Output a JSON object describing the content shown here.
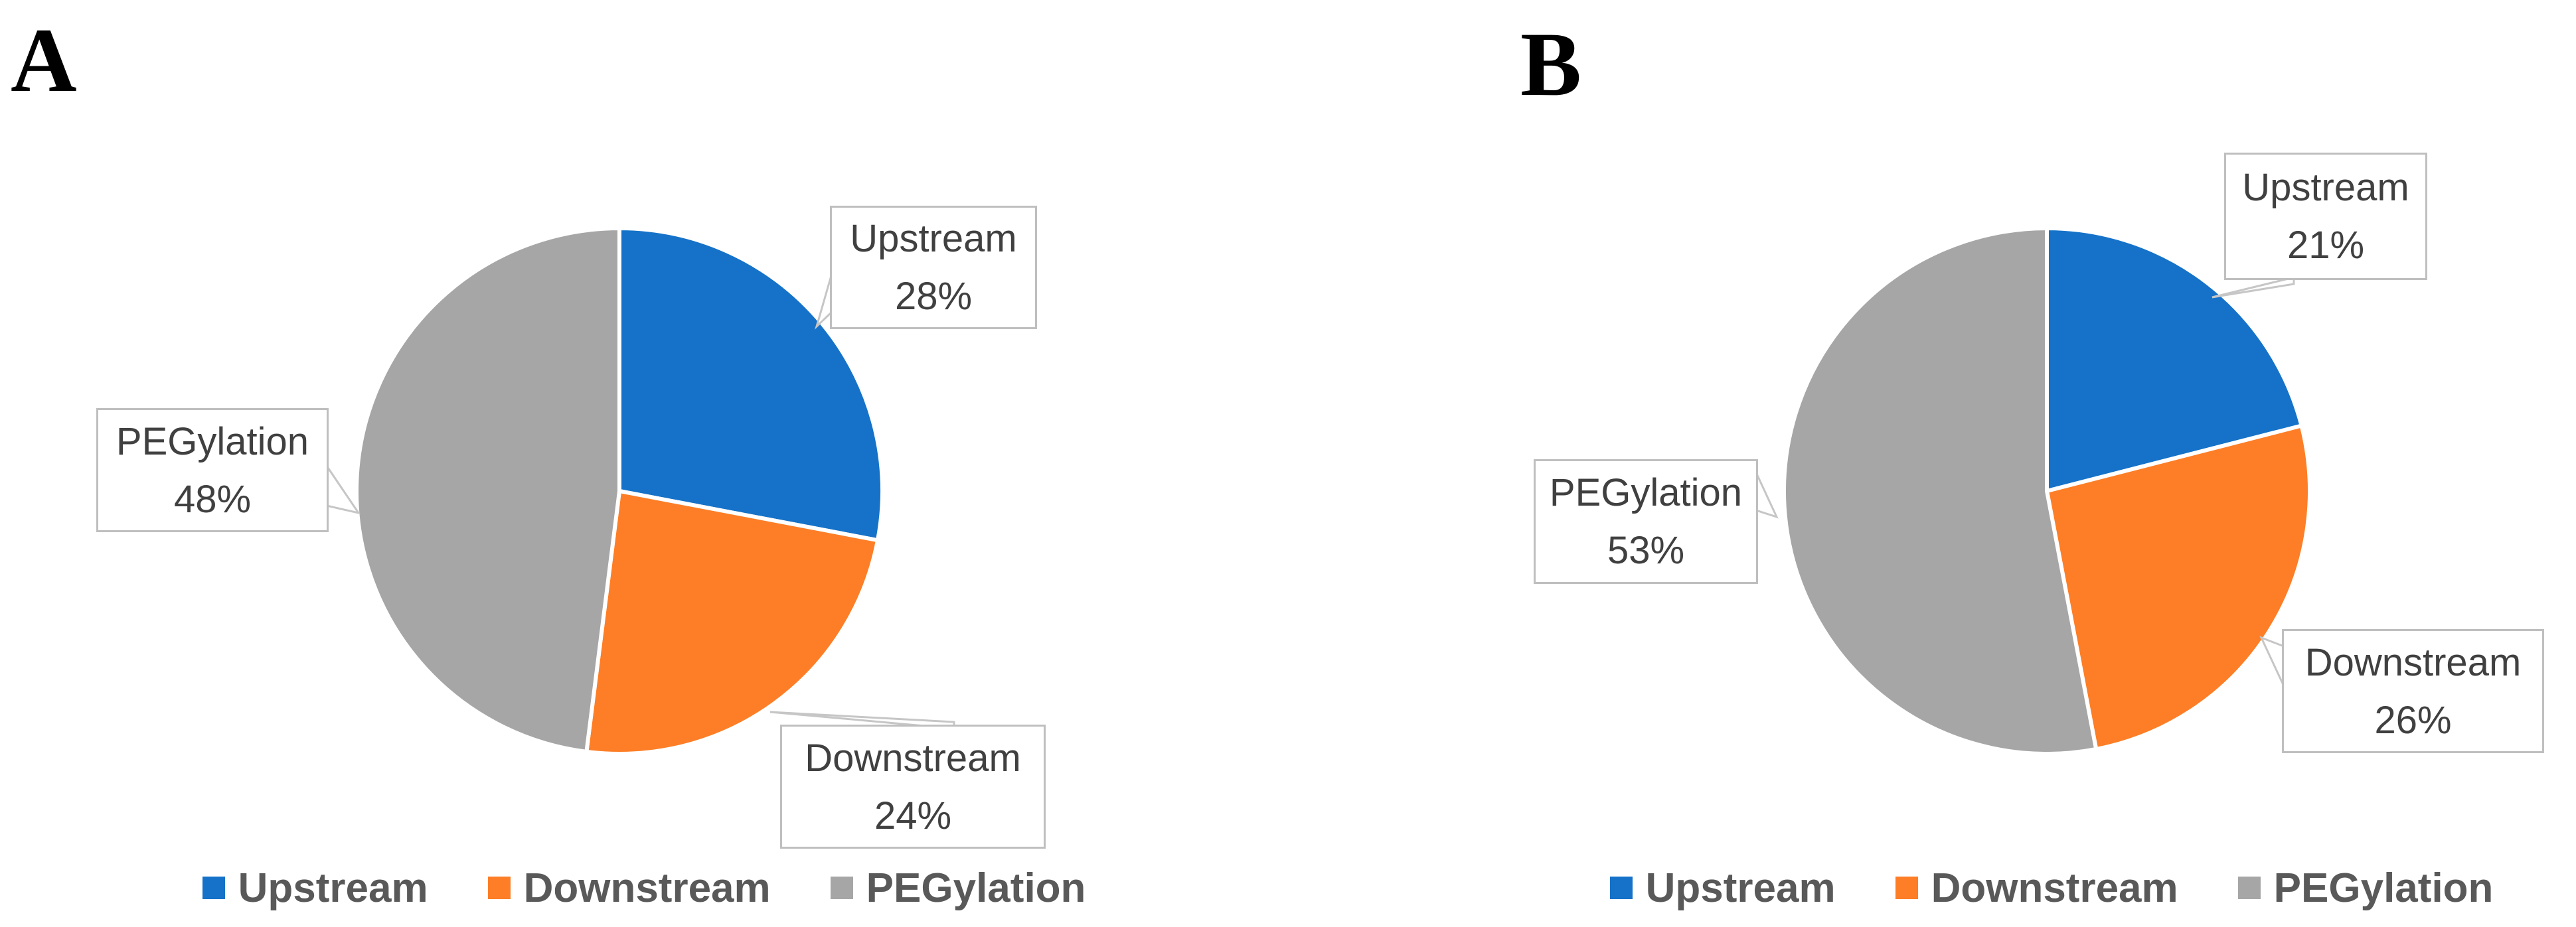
{
  "figure": {
    "background": "#FFFFFF"
  },
  "panels": {
    "a": {
      "letter": "A",
      "callouts": {
        "upstream": {
          "label": "Upstream",
          "value": "28%"
        },
        "pegylation": {
          "label": "PEGylation",
          "value": "48%"
        },
        "downstream": {
          "label": "Downstream",
          "value": "24%"
        }
      },
      "legend": [
        {
          "label": "Upstream",
          "color": "#1572C8"
        },
        {
          "label": "Downstream",
          "color": "#FD7E26"
        },
        {
          "label": "PEGylation",
          "color": "#A6A6A6"
        }
      ]
    },
    "b": {
      "letter": "B",
      "callouts": {
        "upstream": {
          "label": "Upstream",
          "value": "21%"
        },
        "pegylation": {
          "label": "PEGylation",
          "value": "53%"
        },
        "downstream": {
          "label": "Downstream",
          "value": "26%"
        }
      },
      "legend": [
        {
          "label": "Upstream",
          "color": "#1572C8"
        },
        {
          "label": "Downstream",
          "color": "#FD7E26"
        },
        {
          "label": "PEGylation",
          "color": "#A6A6A6"
        }
      ]
    }
  },
  "chart_data": [
    {
      "type": "pie",
      "panel": "A",
      "categories": [
        "Upstream",
        "Downstream",
        "PEGylation"
      ],
      "values": [
        28,
        24,
        48
      ],
      "unit": "%",
      "colors": [
        "#1572C8",
        "#FD7E26",
        "#A6A6A6"
      ],
      "start_at": "12-oclock",
      "direction": "clockwise",
      "legend_position": "bottom",
      "legend_entries": [
        "Upstream",
        "Downstream",
        "PEGylation"
      ],
      "data_labels": "callout boxes showing category name and percent"
    },
    {
      "type": "pie",
      "panel": "B",
      "categories": [
        "Upstream",
        "Downstream",
        "PEGylation"
      ],
      "values": [
        21,
        26,
        53
      ],
      "unit": "%",
      "colors": [
        "#1572C8",
        "#FD7E26",
        "#A6A6A6"
      ],
      "start_at": "12-oclock",
      "direction": "clockwise",
      "legend_position": "bottom",
      "legend_entries": [
        "Upstream",
        "Downstream",
        "PEGylation"
      ],
      "data_labels": "callout boxes showing category name and percent"
    }
  ]
}
